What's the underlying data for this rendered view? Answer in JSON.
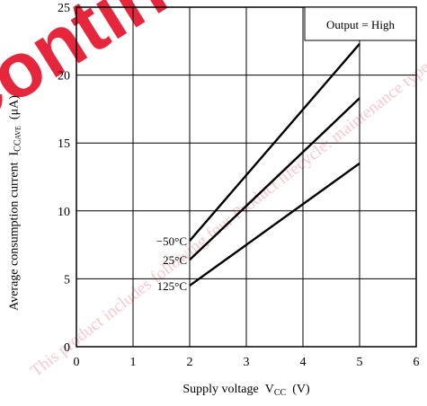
{
  "chart_data": {
    "type": "line",
    "title": "",
    "watermark": "This product includes following four Product lifecycle: maintenance type, planed discontinued typed, discontinued",
    "xlabel": {
      "text": "Supply voltage",
      "symbol": "V",
      "symbol_sub": "CC",
      "unit": "(V)"
    },
    "ylabel": {
      "text": "Average consumption current",
      "symbol": "I",
      "symbol_sub": "CC",
      "symbol_subsub": "AVE",
      "unit": "(μA)"
    },
    "xlim": [
      0,
      6
    ],
    "ylim": [
      0,
      25
    ],
    "x_ticks": [
      "0",
      "1",
      "2",
      "3",
      "4",
      "5",
      "6"
    ],
    "y_ticks": [
      "0",
      "5",
      "10",
      "15",
      "20",
      "25"
    ],
    "grid": true,
    "annotation": "Output = High",
    "series": [
      {
        "name": "−50°C",
        "x": [
          2,
          5
        ],
        "y": [
          7.8,
          22.3
        ]
      },
      {
        "name": "25°C",
        "x": [
          2,
          5
        ],
        "y": [
          6.4,
          18.3
        ]
      },
      {
        "name": "125°C",
        "x": [
          2,
          5
        ],
        "y": [
          4.5,
          13.5
        ]
      }
    ]
  }
}
